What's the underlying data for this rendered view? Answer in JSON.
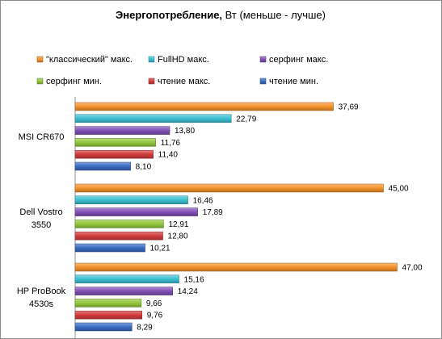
{
  "chart_data": {
    "type": "bar",
    "orientation": "horizontal",
    "title": "Энергопотребление, Вт (меньше - лучше)",
    "title_bold_part": "Энергопотребление,",
    "title_rest": " Вт (меньше - лучше)",
    "categories": [
      "MSI CR670",
      "Dell Vostro 3550",
      "HP ProBook 4530s"
    ],
    "category_lines": [
      [
        "MSI CR670"
      ],
      [
        "Dell Vostro",
        "3550"
      ],
      [
        "HP ProBook",
        "4530s"
      ]
    ],
    "series": [
      {
        "name": "\"классический\" макс.",
        "color": "#f5922a",
        "values": [
          37.69,
          45.0,
          47.0
        ],
        "labels": [
          "37,69",
          "45,00",
          "47,00"
        ]
      },
      {
        "name": "FullHD макс.",
        "color": "#3cc0d2",
        "values": [
          22.79,
          16.46,
          15.16
        ],
        "labels": [
          "22,79",
          "16,46",
          "15,16"
        ]
      },
      {
        "name": "серфинг макс.",
        "color": "#8250b8",
        "values": [
          13.8,
          17.89,
          14.24
        ],
        "labels": [
          "13,80",
          "17,89",
          "14,24"
        ]
      },
      {
        "name": "серфинг мин.",
        "color": "#92c83c",
        "values": [
          11.76,
          12.91,
          9.66
        ],
        "labels": [
          "11,76",
          "12,91",
          "9,66"
        ]
      },
      {
        "name": "чтение макс.",
        "color": "#d23c3c",
        "values": [
          11.4,
          12.8,
          9.76
        ],
        "labels": [
          "11,40",
          "12,80",
          "9,76"
        ]
      },
      {
        "name": "чтение мин.",
        "color": "#3a6cc4",
        "values": [
          8.1,
          10.21,
          8.29
        ],
        "labels": [
          "8,10",
          "10,21",
          "8,29"
        ]
      }
    ],
    "xlim": [
      0,
      48
    ],
    "legend_position": "top",
    "grid": false
  }
}
